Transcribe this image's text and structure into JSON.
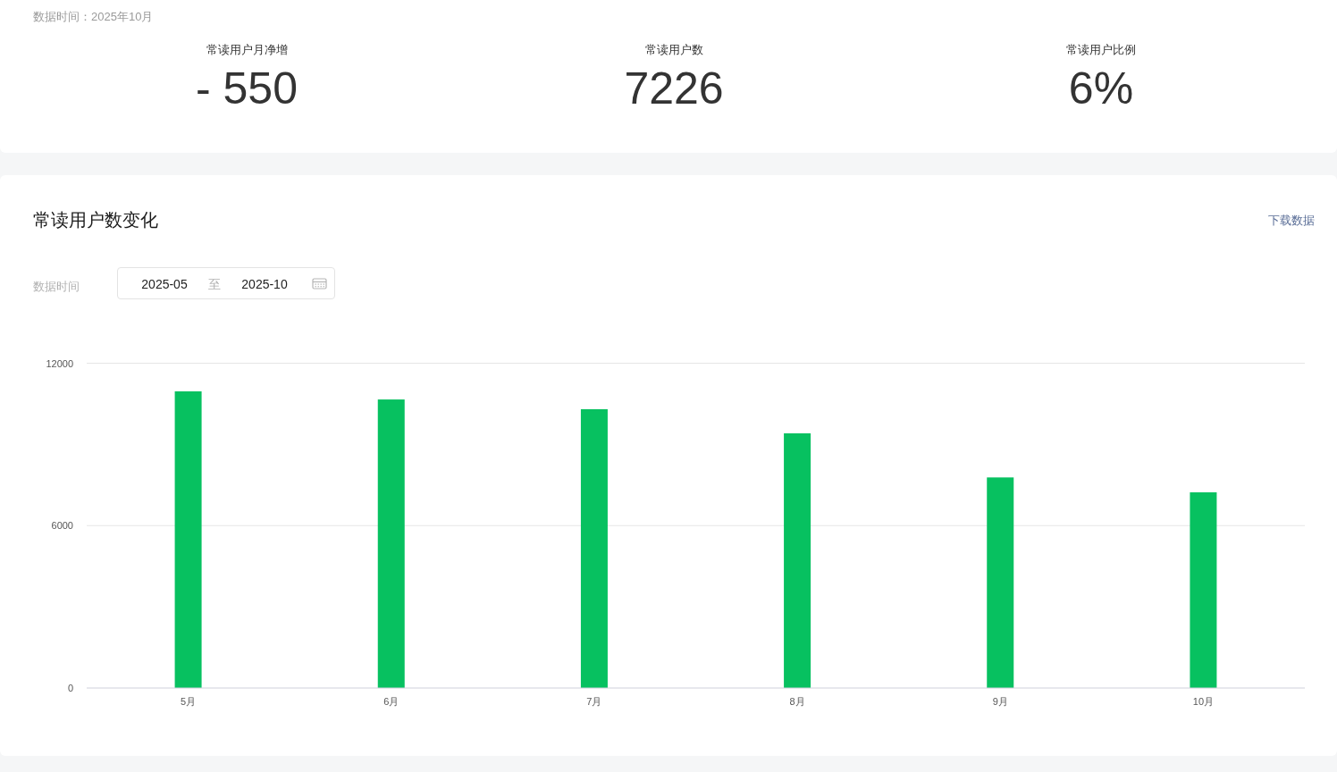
{
  "chart_data": [
    {
      "type": "other",
      "annotations": [
        "数据时间：2025年10月",
        "常读用户月净增",
        "- 550",
        "常读用户数",
        "7226",
        "常读用户比例",
        "6%"
      ]
    },
    {
      "type": "bar",
      "title": "常读用户数变化",
      "annotations": [
        "下载数据",
        "数据时间",
        "2025-05",
        "至",
        "2025-10"
      ],
      "categories": [
        "5月",
        "6月",
        "7月",
        "8月",
        "9月",
        "10月"
      ],
      "values": [
        10960,
        10660,
        10300,
        9410,
        7780,
        7230
      ],
      "color": "#07c160",
      "ylim": [
        0,
        12000
      ],
      "yticks": [
        0,
        6000,
        12000
      ],
      "grid": "y"
    }
  ]
}
